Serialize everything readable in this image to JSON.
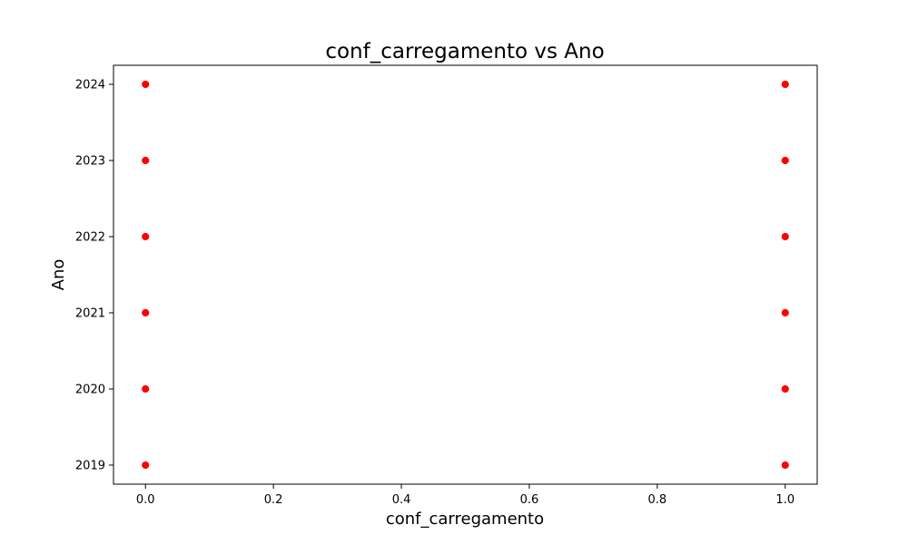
{
  "chart_data": {
    "type": "scatter",
    "title": "conf_carregamento vs Ano",
    "xlabel": "conf_carregamento",
    "ylabel": "Ano",
    "xlim": [
      -0.05,
      1.05
    ],
    "ylim": [
      2018.75,
      2024.25
    ],
    "xticks": [
      0.0,
      0.2,
      0.4,
      0.6,
      0.8,
      1.0
    ],
    "xtick_labels": [
      "0.0",
      "0.2",
      "0.4",
      "0.6",
      "0.8",
      "1.0"
    ],
    "yticks": [
      2019,
      2020,
      2021,
      2022,
      2023,
      2024
    ],
    "ytick_labels": [
      "2019",
      "2020",
      "2021",
      "2022",
      "2023",
      "2024"
    ],
    "grid": false,
    "legend": "none",
    "marker_color": "#ff0000",
    "marker_edge_color": "#ffffff",
    "points": [
      {
        "x": 0,
        "y": 2019
      },
      {
        "x": 0,
        "y": 2020
      },
      {
        "x": 0,
        "y": 2021
      },
      {
        "x": 0,
        "y": 2022
      },
      {
        "x": 0,
        "y": 2023
      },
      {
        "x": 0,
        "y": 2024
      },
      {
        "x": 1,
        "y": 2019
      },
      {
        "x": 1,
        "y": 2020
      },
      {
        "x": 1,
        "y": 2021
      },
      {
        "x": 1,
        "y": 2022
      },
      {
        "x": 1,
        "y": 2023
      },
      {
        "x": 1,
        "y": 2024
      }
    ]
  }
}
